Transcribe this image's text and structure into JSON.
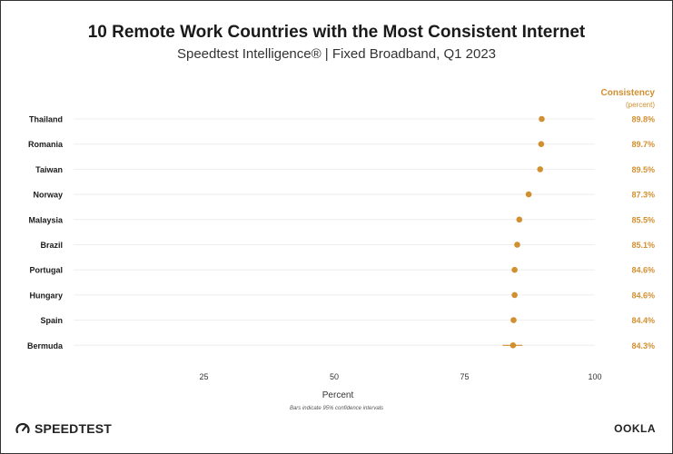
{
  "title": "10 Remote Work Countries with the Most Consistent Internet",
  "subtitle": "Speedtest Intelligence® | Fixed Broadband, Q1 2023",
  "consistency_header": "Consistency",
  "consistency_unit": "(percent)",
  "footnote": "Bars indicate 95% confidence intervals",
  "brand_left": "SPEEDTEST",
  "brand_right": "OOKLA",
  "colors": {
    "accent": "#d28f30",
    "text": "#1a1a1a",
    "grid": "#eeeeee"
  },
  "chart_data": {
    "type": "scatter",
    "title": "10 Remote Work Countries with the Most Consistent Internet",
    "subtitle": "Speedtest Intelligence® | Fixed Broadband, Q1 2023",
    "xlabel": "Percent",
    "ylabel": "",
    "xlim": [
      0,
      100
    ],
    "xticks": [
      25,
      50,
      75,
      100
    ],
    "grid": true,
    "categories": [
      "Thailand",
      "Romania",
      "Taiwan",
      "Norway",
      "Malaysia",
      "Brazil",
      "Portugal",
      "Hungary",
      "Spain",
      "Bermuda"
    ],
    "values": [
      89.8,
      89.7,
      89.5,
      87.3,
      85.5,
      85.1,
      84.6,
      84.6,
      84.4,
      84.3
    ],
    "value_labels": [
      "89.8%",
      "89.7%",
      "89.5%",
      "87.3%",
      "85.5%",
      "85.1%",
      "84.6%",
      "84.6%",
      "84.4%",
      "84.3%"
    ],
    "ci_low": [
      89.6,
      89.5,
      89.3,
      87.0,
      85.2,
      84.9,
      84.3,
      84.3,
      84.2,
      82.3
    ],
    "ci_high": [
      90.0,
      89.9,
      89.7,
      87.6,
      85.8,
      85.3,
      84.9,
      84.9,
      84.6,
      86.1
    ]
  }
}
